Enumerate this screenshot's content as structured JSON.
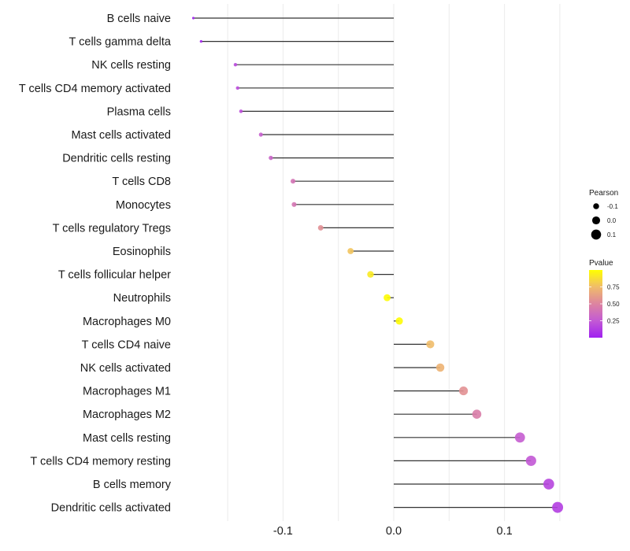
{
  "chart_data": {
    "type": "lollipop",
    "title": "",
    "xlabel": "",
    "ylabel": "",
    "xlim": [
      -0.1505,
      0.1505
    ],
    "x_ticks": [
      -0.1,
      0.0,
      0.1
    ],
    "x_tick_labels": [
      "-0.1",
      "0.0",
      "0.1"
    ],
    "minor_gridlines": [
      -0.15,
      -0.05,
      0.05,
      0.15
    ],
    "grid": true,
    "categories": [
      "B cells naive",
      "T cells gamma delta",
      "NK cells resting",
      "T cells CD4 memory activated",
      "Plasma cells",
      "Mast cells activated",
      "Dendritic cells resting",
      "T cells CD8",
      "Monocytes",
      "T cells regulatory  Tregs ",
      "Eosinophils",
      "T cells follicular helper",
      "Neutrophils",
      "Macrophages M0",
      "T cells CD4 naive",
      "NK cells activated",
      "Macrophages M1",
      "Macrophages M2",
      "Mast cells resting",
      "T cells CD4 memory resting",
      "B cells memory",
      "Dendritic cells activated"
    ],
    "pearson": [
      -0.181,
      -0.174,
      -0.143,
      -0.141,
      -0.138,
      -0.12,
      -0.111,
      -0.091,
      -0.09,
      -0.066,
      -0.039,
      -0.021,
      -0.006,
      0.005,
      0.033,
      0.042,
      0.063,
      0.075,
      0.114,
      0.124,
      0.14,
      0.148
    ],
    "pvalue": [
      0.01,
      0.03,
      0.18,
      0.19,
      0.2,
      0.28,
      0.31,
      0.4,
      0.41,
      0.55,
      0.78,
      0.92,
      0.99,
      0.99,
      0.75,
      0.71,
      0.56,
      0.46,
      0.27,
      0.24,
      0.16,
      0.13
    ],
    "legend": {
      "placement": "right",
      "size": {
        "title": "Pearson",
        "breaks": [
          -0.1,
          0.0,
          0.1
        ],
        "labels": [
          "-0.1",
          "0.0",
          "0.1"
        ]
      },
      "color": {
        "title": "Pvalue",
        "breaks": [
          0.25,
          0.5,
          0.75
        ],
        "labels": [
          "0.25",
          "0.50",
          "0.75"
        ],
        "range": [
          0.0,
          1.0
        ],
        "low_color": "#a020f0",
        "mid_color": "#dd84a0",
        "high_color": "#ffff00"
      }
    }
  }
}
